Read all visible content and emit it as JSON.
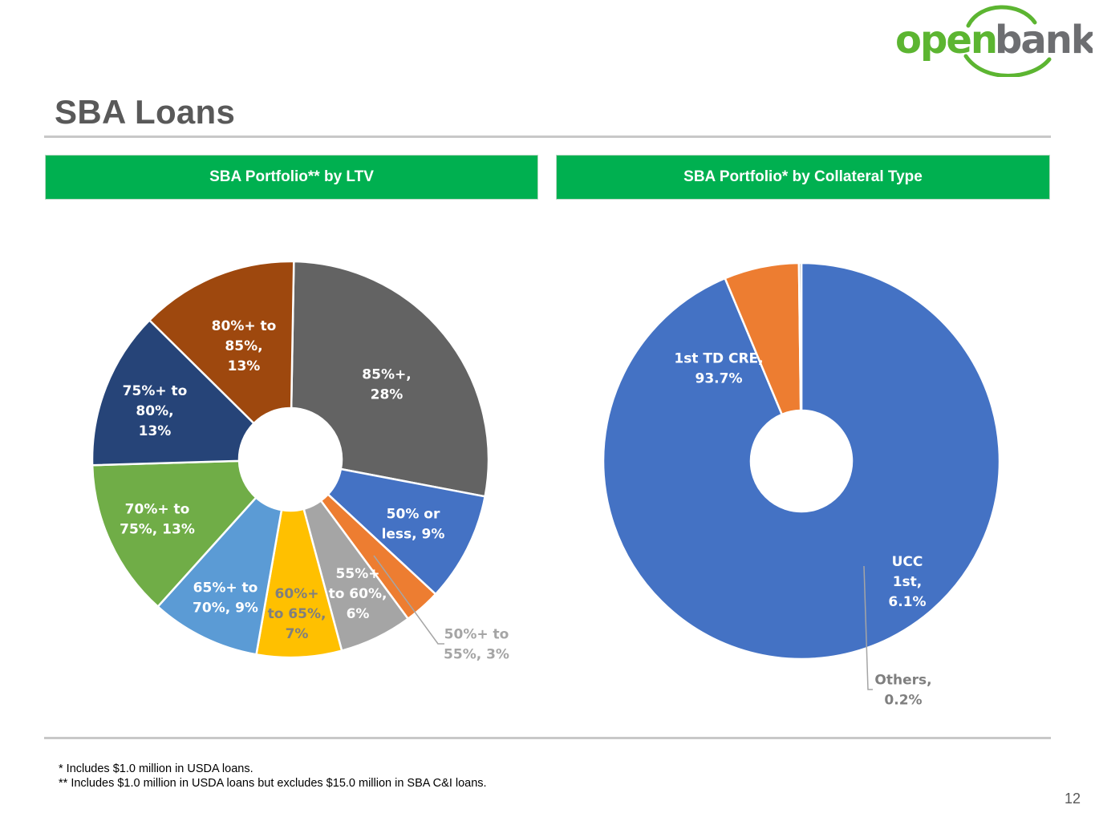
{
  "brand": {
    "logo_text_part1": "open",
    "logo_text_part2": "bank",
    "logo_green": "#5cb531",
    "logo_gray": "#6d6e71"
  },
  "page": {
    "title": "SBA Loans",
    "page_number": "12",
    "header_color": "#00b050"
  },
  "footnotes": [
    "* Includes $1.0 million in USDA loans.",
    "** Includes $1.0 million in USDA loans but excludes $15.0 million in SBA C&I loans."
  ],
  "chart_data": [
    {
      "type": "pie",
      "donut": true,
      "title": "SBA Portfolio** by LTV",
      "slices": [
        {
          "name": "85%+",
          "value": 28,
          "color": "#636363",
          "label_lines": [
            "85%+,",
            "28%"
          ],
          "label_color": "#ffffff"
        },
        {
          "name": "50% or less",
          "value": 9,
          "color": "#4472c4",
          "label_lines": [
            "50% or",
            "less, 9%"
          ],
          "label_color": "#ffffff"
        },
        {
          "name": "50%+ to 55%",
          "value": 3,
          "color": "#ed7d31",
          "label_lines": [
            "50%+ to",
            "55%, 3%"
          ],
          "label_color": "#a5a5a5",
          "leader": true
        },
        {
          "name": "55%+ to 60%",
          "value": 6,
          "color": "#a5a5a5",
          "label_lines": [
            "55%+",
            "to 60%,",
            "6%"
          ],
          "label_color": "#ffffff"
        },
        {
          "name": "60%+ to 65%",
          "value": 7,
          "color": "#ffc000",
          "label_lines": [
            "60%+",
            "to 65%,",
            "7%"
          ],
          "label_color": "#7f7f7f"
        },
        {
          "name": "65%+ to 70%",
          "value": 9,
          "color": "#5b9bd5",
          "label_lines": [
            "65%+ to",
            "70%, 9%"
          ],
          "label_color": "#ffffff"
        },
        {
          "name": "70%+ to 75%",
          "value": 13,
          "color": "#70ad47",
          "label_lines": [
            "70%+ to",
            "75%, 13%"
          ],
          "label_color": "#ffffff"
        },
        {
          "name": "75%+ to 80%",
          "value": 13,
          "color": "#264478",
          "label_lines": [
            "75%+ to",
            "80%,",
            "13%"
          ],
          "label_color": "#ffffff"
        },
        {
          "name": "80%+ to 85%",
          "value": 13,
          "color": "#9e480e",
          "label_lines": [
            "80%+ to",
            "85%,",
            "13%"
          ],
          "label_color": "#ffffff"
        }
      ]
    },
    {
      "type": "pie",
      "donut": true,
      "title": "SBA Portfolio* by Collateral Type",
      "slices": [
        {
          "name": "1st TD CRE",
          "value": 93.7,
          "color": "#4472c4",
          "label_lines": [
            "1st TD CRE,",
            "93.7%"
          ],
          "label_color": "#ffffff"
        },
        {
          "name": "UCC 1st",
          "value": 6.1,
          "color": "#ed7d31",
          "label_lines": [
            "UCC",
            "1st,",
            "6.1%"
          ],
          "label_color": "#ffffff"
        },
        {
          "name": "Others",
          "value": 0.2,
          "color": "#a5a5a5",
          "label_lines": [
            "Others,",
            "0.2%"
          ],
          "label_color": "#7f7f7f",
          "leader": true
        }
      ]
    }
  ]
}
